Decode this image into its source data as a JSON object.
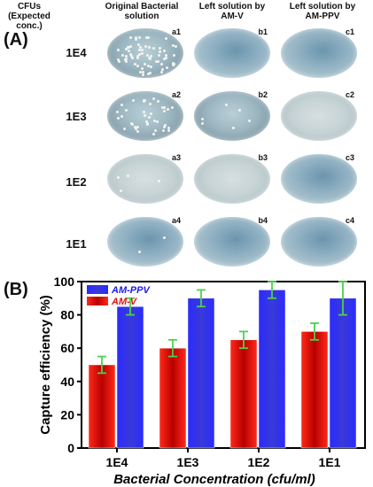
{
  "panel_a": {
    "label": "(A)",
    "cfu_header": "CFUs\n(Expected conc.)",
    "column_headers": [
      "Original Bacterial\nsolution",
      "Left solution by\nAM-V",
      "Left solution by\nAM-PPV"
    ],
    "rows": [
      {
        "label": "1E4",
        "plates": [
          "a1",
          "b1",
          "c1"
        ]
      },
      {
        "label": "1E3",
        "plates": [
          "a2",
          "b2",
          "c2"
        ]
      },
      {
        "label": "1E2",
        "plates": [
          "a3",
          "b3",
          "c3"
        ]
      },
      {
        "label": "1E1",
        "plates": [
          "a4",
          "b4",
          "c4"
        ]
      }
    ]
  },
  "panel_b": {
    "label": "(B)"
  },
  "chart_data": {
    "type": "bar",
    "categories": [
      "1E4",
      "1E3",
      "1E2",
      "1E1"
    ],
    "series": [
      {
        "name": "AM-V",
        "values": [
          50,
          60,
          65,
          70
        ],
        "errors": [
          5,
          5,
          5,
          5
        ],
        "color": "#e01010"
      },
      {
        "name": "AM-PPV",
        "values": [
          85,
          90,
          95,
          90
        ],
        "errors": [
          5,
          5,
          5,
          10
        ],
        "color": "#1a1aee"
      }
    ],
    "yticks": [
      0,
      20,
      40,
      60,
      80,
      100
    ],
    "ylim": [
      0,
      100
    ],
    "xlabel": "Bacterial Concentration (cfu/ml)",
    "ylabel": "Capture efficiency (%)",
    "legend_placement": "top-left",
    "error_bar_color": "#4ed04e"
  }
}
